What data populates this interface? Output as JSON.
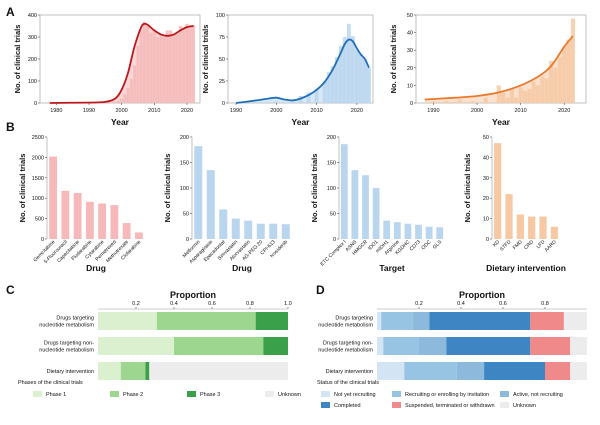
{
  "panel_labels": [
    "A",
    "B",
    "C",
    "D"
  ],
  "colors": {
    "red": "#c0171c",
    "red_fill": "#f6b8b8",
    "blue": "#1f6fba",
    "blue_fill": "#b9d6ee",
    "orange": "#e87b2e",
    "orange_fill": "#f6c9a4",
    "green1": "#dbf0cf",
    "green2": "#9dd68e",
    "green3": "#3aa04a",
    "unknown": "#ececec",
    "d_notyet": "#d3e5f4",
    "d_recruit": "#98c4e4",
    "d_completed": "#3d86c3",
    "d_active": "#8cb9dc",
    "d_susp": "#f08a8a",
    "d_unknown": "#ececec"
  },
  "chart_data": [
    {
      "id": "A1",
      "type": "area",
      "color": "red",
      "xlabel": "Year",
      "ylabel": "No. of clinical trials",
      "xlim": [
        1975,
        2024
      ],
      "ylim": [
        0,
        400
      ],
      "xticks": [
        1980,
        1990,
        2000,
        2010,
        2020
      ],
      "yticks": [
        0,
        100,
        200,
        300,
        400
      ],
      "bars": [
        [
          1996,
          1
        ],
        [
          1997,
          3
        ],
        [
          1998,
          5
        ],
        [
          1999,
          10
        ],
        [
          2000,
          20
        ],
        [
          2001,
          40
        ],
        [
          2002,
          70
        ],
        [
          2003,
          110
        ],
        [
          2004,
          170
        ],
        [
          2005,
          260
        ],
        [
          2006,
          330
        ],
        [
          2007,
          370
        ],
        [
          2008,
          350
        ],
        [
          2009,
          320
        ],
        [
          2010,
          330
        ],
        [
          2011,
          300
        ],
        [
          2012,
          310
        ],
        [
          2013,
          300
        ],
        [
          2014,
          330
        ],
        [
          2015,
          330
        ],
        [
          2016,
          310
        ],
        [
          2017,
          320
        ],
        [
          2018,
          350
        ],
        [
          2019,
          340
        ],
        [
          2020,
          360
        ],
        [
          2021,
          340
        ],
        [
          2022,
          355
        ]
      ],
      "trend": [
        [
          1978,
          0
        ],
        [
          1990,
          2
        ],
        [
          1995,
          5
        ],
        [
          1998,
          20
        ],
        [
          2000,
          60
        ],
        [
          2002,
          140
        ],
        [
          2004,
          260
        ],
        [
          2006,
          345
        ],
        [
          2007,
          360
        ],
        [
          2008,
          355
        ],
        [
          2010,
          330
        ],
        [
          2012,
          312
        ],
        [
          2014,
          305
        ],
        [
          2016,
          312
        ],
        [
          2018,
          330
        ],
        [
          2020,
          345
        ],
        [
          2022,
          350
        ]
      ]
    },
    {
      "id": "A2",
      "type": "area",
      "color": "blue",
      "xlabel": "Year",
      "ylabel": "No. of clinical trials",
      "xlim": [
        1988,
        2024
      ],
      "ylim": [
        0,
        100
      ],
      "xticks": [
        1990,
        2000,
        2010,
        2020
      ],
      "yticks": [
        0,
        25,
        50,
        75,
        100
      ],
      "bars": [
        [
          1995,
          1
        ],
        [
          2000,
          2
        ],
        [
          2004,
          4
        ],
        [
          2006,
          8
        ],
        [
          2008,
          12
        ],
        [
          2010,
          16
        ],
        [
          2012,
          25
        ],
        [
          2013,
          35
        ],
        [
          2014,
          42
        ],
        [
          2015,
          52
        ],
        [
          2016,
          65
        ],
        [
          2017,
          75
        ],
        [
          2018,
          90
        ],
        [
          2019,
          76
        ],
        [
          2020,
          60
        ],
        [
          2021,
          55
        ],
        [
          2022,
          50
        ],
        [
          2023,
          40
        ]
      ],
      "trend": [
        [
          1990,
          0
        ],
        [
          1995,
          3
        ],
        [
          1998,
          5
        ],
        [
          2000,
          6
        ],
        [
          2002,
          4
        ],
        [
          2004,
          3
        ],
        [
          2006,
          5
        ],
        [
          2008,
          9
        ],
        [
          2010,
          15
        ],
        [
          2012,
          24
        ],
        [
          2014,
          38
        ],
        [
          2016,
          57
        ],
        [
          2017,
          67
        ],
        [
          2018,
          72
        ],
        [
          2019,
          70
        ],
        [
          2020,
          62
        ],
        [
          2021,
          55
        ],
        [
          2022,
          50
        ],
        [
          2023,
          40
        ]
      ]
    },
    {
      "id": "A3",
      "type": "area",
      "color": "orange",
      "xlabel": "Year",
      "ylabel": "No. of clinical trials",
      "xlim": [
        1986,
        2025
      ],
      "ylim": [
        0,
        50
      ],
      "xticks": [
        1990,
        2000,
        2010,
        2020
      ],
      "yticks": [
        0,
        10,
        20,
        30,
        40,
        50
      ],
      "bars": [
        [
          1990,
          1
        ],
        [
          1993,
          1
        ],
        [
          1996,
          2
        ],
        [
          1999,
          1
        ],
        [
          2002,
          3
        ],
        [
          2005,
          10
        ],
        [
          2006,
          6
        ],
        [
          2007,
          3
        ],
        [
          2008,
          8
        ],
        [
          2009,
          3
        ],
        [
          2010,
          9
        ],
        [
          2011,
          7
        ],
        [
          2012,
          8
        ],
        [
          2013,
          12
        ],
        [
          2014,
          10
        ],
        [
          2015,
          15
        ],
        [
          2016,
          14
        ],
        [
          2017,
          24
        ],
        [
          2018,
          20
        ],
        [
          2019,
          26
        ],
        [
          2020,
          32
        ],
        [
          2021,
          36
        ],
        [
          2022,
          48
        ]
      ],
      "trend": [
        [
          1988,
          2
        ],
        [
          1995,
          3
        ],
        [
          2000,
          4
        ],
        [
          2005,
          6
        ],
        [
          2010,
          10
        ],
        [
          2014,
          15
        ],
        [
          2017,
          21
        ],
        [
          2020,
          32
        ],
        [
          2022,
          38
        ]
      ]
    },
    {
      "id": "B1",
      "type": "bar",
      "color": "red",
      "xlabel": "Drug",
      "ylabel": "No. of clinical trials",
      "ylim": [
        0,
        2500
      ],
      "yticks": [
        0,
        500,
        1000,
        1500,
        2000,
        2500
      ],
      "categories": [
        "Gemcitabine",
        "5-Fluorouracil",
        "Capecitabine",
        "Fludarabine",
        "Cytarabine",
        "Pemetrexed",
        "Methotrexate",
        "Clofarabine"
      ],
      "values": [
        2020,
        1180,
        1130,
        910,
        870,
        830,
        390,
        160
      ]
    },
    {
      "id": "B2",
      "type": "bar",
      "color": "blue",
      "xlabel": "Drug",
      "ylabel": "No. of clinical trials",
      "ylim": [
        0,
        200
      ],
      "yticks": [
        0,
        50,
        100,
        150,
        200
      ],
      "categories": [
        "Metformin",
        "Asparaginase",
        "Epacadostat",
        "Simvastatin",
        "Atorvastatin",
        "AG-PEG 20",
        "CPI-613",
        "Ivosidenib"
      ],
      "values": [
        182,
        135,
        58,
        40,
        36,
        30,
        30,
        29
      ]
    },
    {
      "id": "B3",
      "type": "bar",
      "color": "blue",
      "xlabel": "Target",
      "ylabel": "No. of clinical trials",
      "ylim": [
        0,
        200
      ],
      "yticks": [
        0,
        50,
        100,
        150,
        200
      ],
      "categories": [
        "ETC Complex I",
        "ASNS",
        "HMGCR",
        "IDO1",
        "mIDH1",
        "Arginine",
        "KGDHC",
        "CD73",
        "ODC",
        "GLS"
      ],
      "values": [
        186,
        135,
        125,
        100,
        36,
        33,
        30,
        28,
        24,
        23
      ]
    },
    {
      "id": "B4",
      "type": "bar",
      "color": "orange",
      "xlabel": "Dietary intervention",
      "ylabel": "No. of clinical trials",
      "ylim": [
        0,
        50
      ],
      "yticks": [
        0,
        10,
        20,
        30,
        40,
        50
      ],
      "categories": [
        "KD",
        "STFD",
        "FMD",
        "CRD",
        "LFD",
        "AARD"
      ],
      "values": [
        47,
        22,
        12,
        11,
        11,
        6
      ]
    },
    {
      "id": "C",
      "type": "stacked-bar-horizontal",
      "xlabel": "Proportion",
      "xlim": [
        0,
        1
      ],
      "xticks": [
        0.2,
        0.4,
        0.6,
        0.8,
        1.0
      ],
      "xtick_labels": [
        "0.2",
        "0.4",
        "0.6",
        "0.8",
        "1.0"
      ],
      "categories": [
        "Drugs targeting nucleotide metabolism",
        "Drugs targeting non-nucleotide metabolism",
        "Dietary intervention"
      ],
      "category_lines": [
        [
          "Drugs targeting",
          "nucleotide metabolism"
        ],
        [
          "Drugs targeting non-",
          "nucleotide metabolism"
        ],
        [
          "Dietary intervention"
        ]
      ],
      "series": [
        {
          "name": "Phase 1",
          "color": "green1",
          "values": [
            0.31,
            0.4,
            0.12
          ]
        },
        {
          "name": "Phase 2",
          "color": "green2",
          "values": [
            0.52,
            0.47,
            0.13
          ]
        },
        {
          "name": "Phase 3",
          "color": "green3",
          "values": [
            0.17,
            0.13,
            0.02
          ]
        },
        {
          "name": "Unknown",
          "color": "unknown",
          "values": [
            0.0,
            0.0,
            0.73
          ]
        }
      ],
      "legend_title": "Phases of the clinical trials"
    },
    {
      "id": "D",
      "type": "stacked-bar-horizontal",
      "xlabel": "Proportion",
      "xlim": [
        0,
        1
      ],
      "xticks": [
        0.2,
        0.4,
        0.6,
        0.8
      ],
      "xtick_labels": [
        "0.2",
        "0.4",
        "0.6",
        "0.8"
      ],
      "categories": [
        "Drugs targeting nucleotide metabolism",
        "Drugs targeting non-nucleotide metabolism",
        "Dietary intervention"
      ],
      "category_lines": [
        [
          "Drugs targeting",
          "nucleotide metabolism"
        ],
        [
          "Drugs targeting non-",
          "nucleotide metabolism"
        ],
        [
          "Dietary intervention"
        ]
      ],
      "series": [
        {
          "name": "Not yet recruiting",
          "color": "d_notyet",
          "values": [
            0.02,
            0.03,
            0.13
          ]
        },
        {
          "name": "Recruiting or enrolling by invitation",
          "color": "d_recruit",
          "values": [
            0.15,
            0.17,
            0.25
          ]
        },
        {
          "name": "Active, not recruiting",
          "color": "d_active",
          "values": [
            0.08,
            0.13,
            0.13
          ]
        },
        {
          "name": "Completed",
          "color": "d_completed",
          "values": [
            0.48,
            0.4,
            0.29
          ]
        },
        {
          "name": "Suspended, terminated or withdrawn",
          "color": "d_susp",
          "values": [
            0.16,
            0.19,
            0.12
          ]
        },
        {
          "name": "Unknown",
          "color": "d_unknown",
          "values": [
            0.11,
            0.08,
            0.08
          ]
        }
      ],
      "legend_title": "Status of the clinical trials",
      "legend_order": [
        0,
        1,
        2,
        3,
        4,
        5
      ]
    }
  ]
}
